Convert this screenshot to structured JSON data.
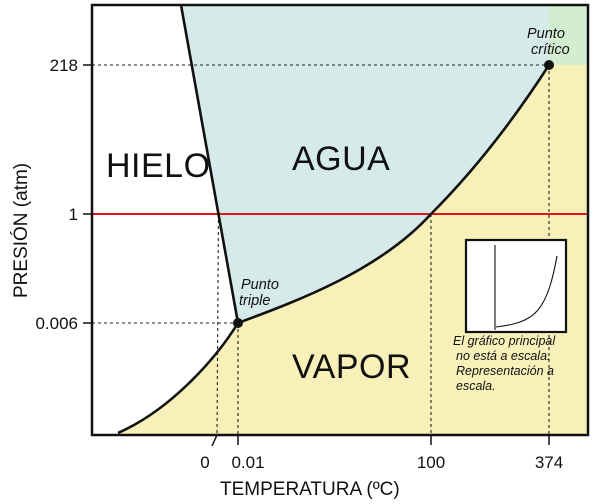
{
  "chart_data": {
    "type": "line",
    "title": "",
    "xlabel": "TEMPERATURA (ºC)",
    "ylabel": "PRESIÓN (atm)",
    "x_ticks": [
      {
        "value": 0,
        "label": "0"
      },
      {
        "value": 0.01,
        "label": "0.01"
      },
      {
        "value": 100,
        "label": "100"
      },
      {
        "value": 374,
        "label": "374"
      }
    ],
    "y_ticks": [
      {
        "value": 0.006,
        "label": "0.006"
      },
      {
        "value": 1,
        "label": "1"
      },
      {
        "value": 218,
        "label": "218"
      }
    ],
    "regions": {
      "ice": "HIELO",
      "water": "AGUA",
      "vapor": "VAPOR"
    },
    "points": [
      {
        "name": "triple",
        "x": 0.01,
        "y": 0.006,
        "label": [
          "Punto",
          "triple"
        ]
      },
      {
        "name": "critical",
        "x": 374,
        "y": 218,
        "label": [
          "Punto",
          "crítico"
        ]
      }
    ],
    "reference_line": {
      "y": 1,
      "color": "#e3141b"
    },
    "inset_note": [
      "El gráfico principal",
      "no está a escala.",
      "Representación a",
      "escala."
    ],
    "colors": {
      "water": "#d6eaea",
      "vapor": "#f7f1b9",
      "supercritical": "#d3edd1",
      "ice": "#ffffff",
      "line": "#111111"
    }
  }
}
